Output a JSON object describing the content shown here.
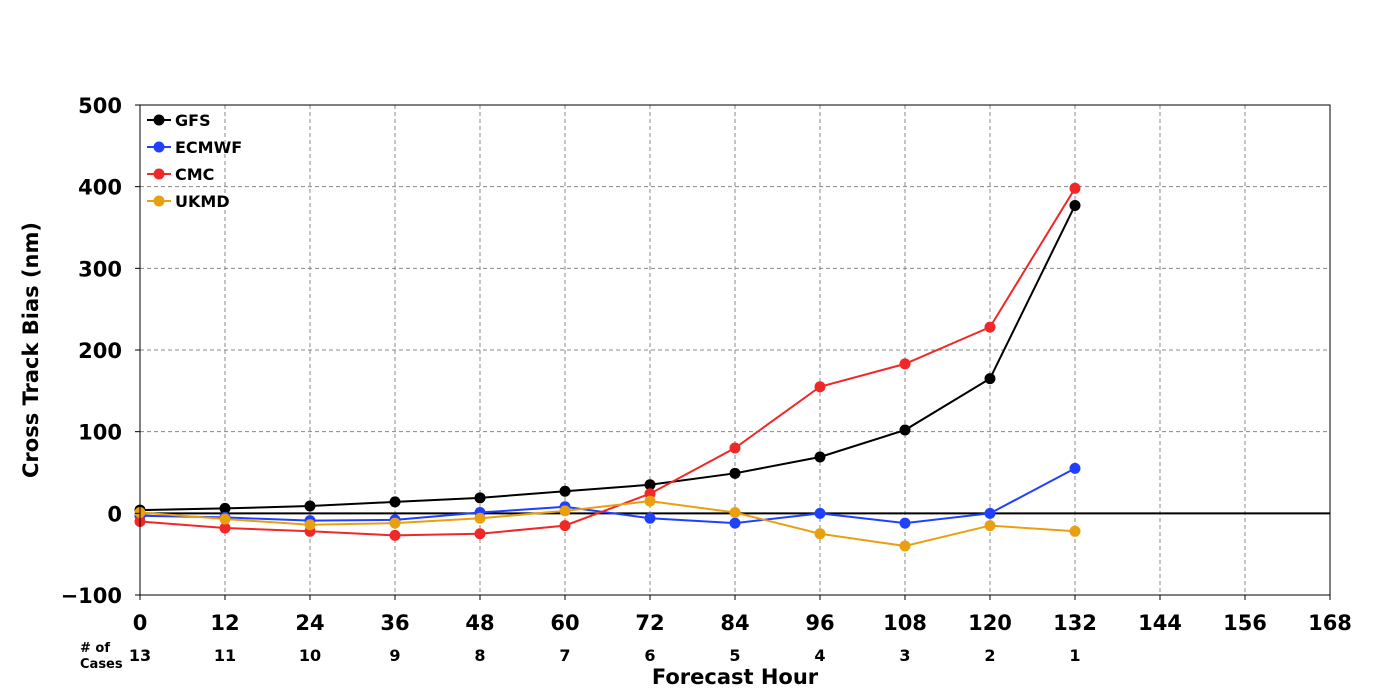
{
  "chart_data": {
    "type": "line",
    "xlabel": "Forecast Hour",
    "ylabel": "Cross Track Bias (nm)",
    "xlim": [
      0,
      168
    ],
    "ylim": [
      -100,
      500
    ],
    "x_ticks": [
      0,
      12,
      24,
      36,
      48,
      60,
      72,
      84,
      96,
      108,
      120,
      132,
      144,
      156,
      168
    ],
    "y_ticks": [
      -100,
      0,
      100,
      200,
      300,
      400,
      500
    ],
    "x_tick_labels": [
      "0",
      "12",
      "24",
      "36",
      "48",
      "60",
      "72",
      "84",
      "96",
      "108",
      "120",
      "132",
      "144",
      "156",
      "168"
    ],
    "y_tick_labels": [
      "−100",
      "0",
      "100",
      "200",
      "300",
      "400",
      "500"
    ],
    "grid": true,
    "legend_position": "top-left",
    "cases_label": "# of\nCases",
    "cases_label_lines": [
      "# of",
      "Cases"
    ],
    "cases_x": [
      0,
      12,
      24,
      36,
      48,
      60,
      72,
      84,
      96,
      108,
      120,
      132
    ],
    "cases": [
      "13",
      "11",
      "10",
      "9",
      "8",
      "7",
      "6",
      "5",
      "4",
      "3",
      "2",
      "1"
    ],
    "x": [
      0,
      12,
      24,
      36,
      48,
      60,
      72,
      84,
      96,
      108,
      120,
      132
    ],
    "series": [
      {
        "name": "GFS",
        "color": "#000000",
        "values": [
          4,
          6,
          9,
          14,
          19,
          27,
          35,
          49,
          69,
          102,
          165,
          377
        ]
      },
      {
        "name": "ECMWF",
        "color": "#2040ff",
        "values": [
          -3,
          -5,
          -9,
          -8,
          1,
          8,
          -6,
          -12,
          0,
          -12,
          0,
          55
        ]
      },
      {
        "name": "CMC",
        "color": "#f02828",
        "values": [
          -10,
          -18,
          -22,
          -27,
          -25,
          -15,
          24,
          80,
          155,
          183,
          228,
          398
        ]
      },
      {
        "name": "UKMD",
        "color": "#e8a010",
        "values": [
          1,
          -7,
          -14,
          -12,
          -6,
          3,
          15,
          1,
          -25,
          -40,
          -15,
          -22
        ]
      }
    ]
  }
}
